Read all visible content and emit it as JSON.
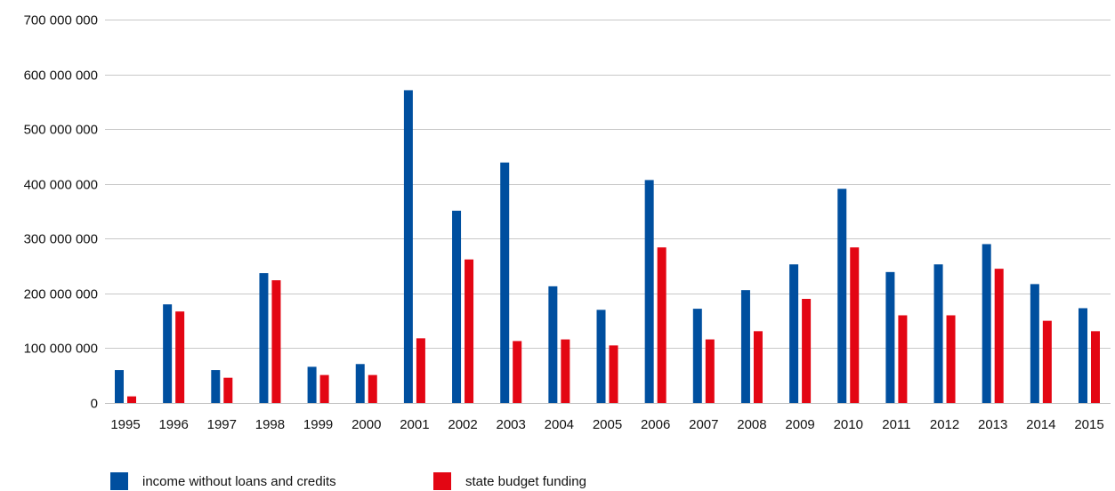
{
  "chart_data": {
    "type": "bar",
    "title": "",
    "xlabel": "",
    "ylabel": "",
    "ylim": [
      0,
      700000000
    ],
    "yticks": [
      0,
      100000000,
      200000000,
      300000000,
      400000000,
      500000000,
      600000000,
      700000000
    ],
    "ytick_labels": [
      "0",
      "100 000 000",
      "200 000 000",
      "300 000 000",
      "400 000 000",
      "500 000 000",
      "600 000 000",
      "700 000 000"
    ],
    "grid": true,
    "legend_position": "bottom-left",
    "categories": [
      "1995",
      "1996",
      "1997",
      "1998",
      "1999",
      "2000",
      "2001",
      "2002",
      "2003",
      "2004",
      "2005",
      "2006",
      "2007",
      "2008",
      "2009",
      "2010",
      "2011",
      "2012",
      "2013",
      "2014",
      "2015"
    ],
    "series": [
      {
        "name": "income without loans and credits",
        "color": "#004f9f",
        "values": [
          60000000,
          180000000,
          60000000,
          237000000,
          66000000,
          71000000,
          571000000,
          351000000,
          439000000,
          213000000,
          170000000,
          407000000,
          172000000,
          206000000,
          253000000,
          391000000,
          239000000,
          253000000,
          290000000,
          217000000,
          173000000
        ]
      },
      {
        "name": "state budget funding",
        "color": "#e30613",
        "values": [
          12000000,
          167000000,
          46000000,
          224000000,
          51000000,
          51000000,
          118000000,
          262000000,
          113000000,
          116000000,
          105000000,
          284000000,
          116000000,
          131000000,
          190000000,
          284000000,
          160000000,
          160000000,
          245000000,
          150000000,
          131000000
        ]
      }
    ]
  }
}
